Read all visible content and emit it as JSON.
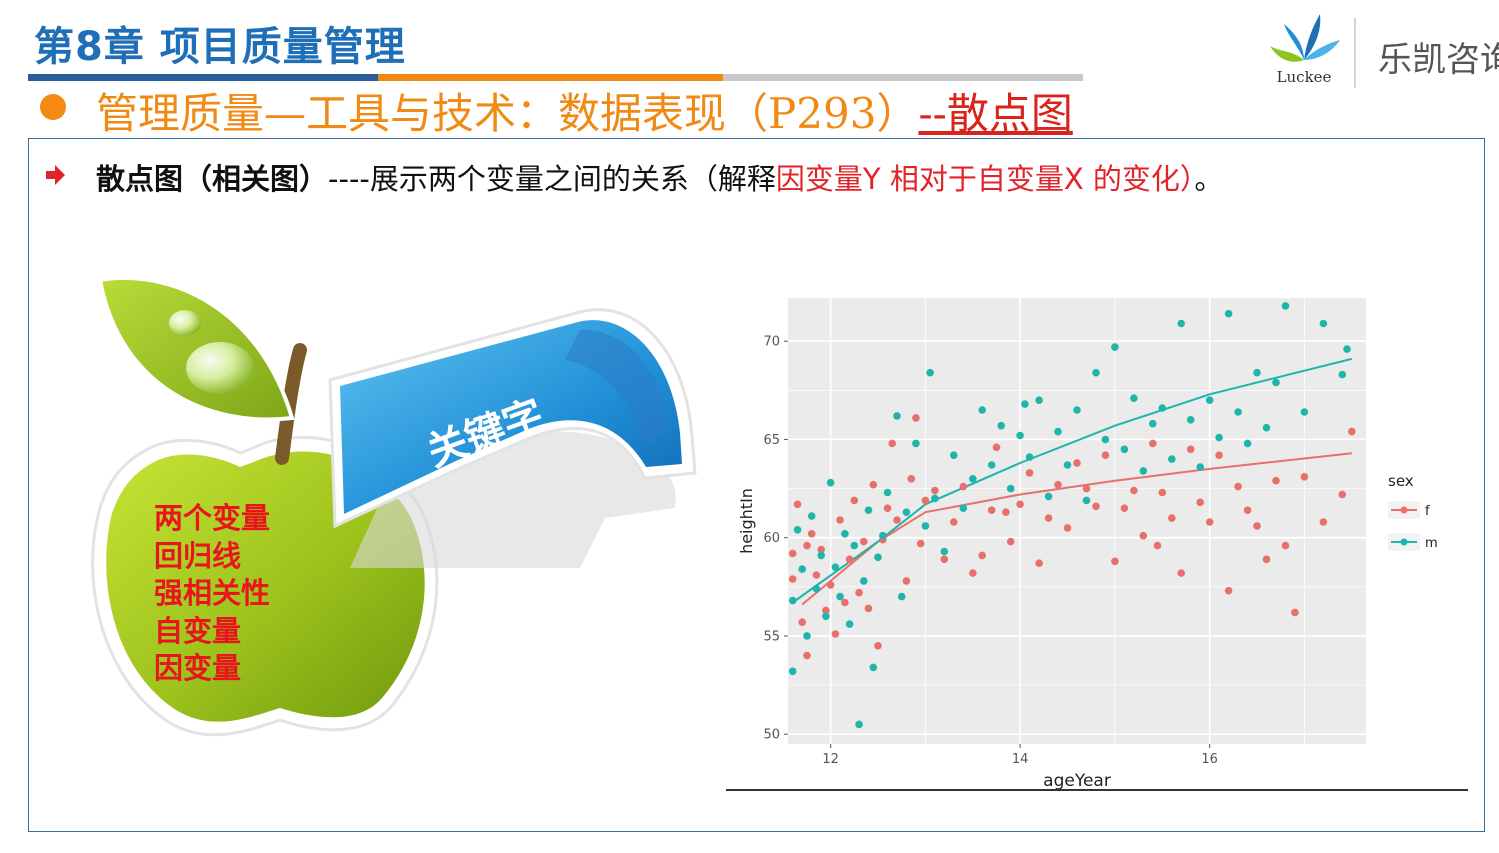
{
  "header": {
    "chapter_title": "第8章 项目质量管理",
    "subtitle_main": "管理质量—工具与技术：数据表现（P293）",
    "subtitle_tail": "--散点图",
    "brand": {
      "logo_text": "Luckee",
      "name": "乐凯咨询"
    }
  },
  "description": {
    "term": "散点图（相关图）",
    "dashes": "----",
    "text": "展示两个变量之间的关系（解释",
    "red_text": "因变量Y 相对于自变量X 的变化）",
    "end": "。"
  },
  "graphic": {
    "arrow_label": "关键字",
    "keywords": [
      "两个变量",
      "回归线",
      "强相关性",
      "自变量",
      "因变量"
    ]
  },
  "colors": {
    "chapter": "#1f6fb8",
    "subtitle": "#f08a14",
    "accent_red": "#e3232a",
    "female": "#e8706a",
    "male": "#1fb5ad",
    "panel": "#ebebeb"
  },
  "chart_data": {
    "type": "scatter",
    "xlabel": "ageYear",
    "ylabel": "heightIn",
    "xlim": [
      11.55,
      17.65
    ],
    "ylim": [
      49.5,
      72.2
    ],
    "xticks": [
      12,
      14,
      16
    ],
    "yticks": [
      50,
      55,
      60,
      65,
      70
    ],
    "grid": true,
    "legend": {
      "title": "sex",
      "position": "right"
    },
    "series": [
      {
        "name": "f",
        "color": "#e8706a",
        "points": [
          [
            11.6,
            57.9
          ],
          [
            11.6,
            59.2
          ],
          [
            11.65,
            61.7
          ],
          [
            11.7,
            55.7
          ],
          [
            11.75,
            59.6
          ],
          [
            11.75,
            54.0
          ],
          [
            11.8,
            60.2
          ],
          [
            11.85,
            58.1
          ],
          [
            11.9,
            59.4
          ],
          [
            11.95,
            56.3
          ],
          [
            12.0,
            57.6
          ],
          [
            12.05,
            55.1
          ],
          [
            12.1,
            60.9
          ],
          [
            12.15,
            56.7
          ],
          [
            12.2,
            58.9
          ],
          [
            12.25,
            61.9
          ],
          [
            12.3,
            57.2
          ],
          [
            12.35,
            59.8
          ],
          [
            12.4,
            56.4
          ],
          [
            12.45,
            62.7
          ],
          [
            12.5,
            54.5
          ],
          [
            12.55,
            59.9
          ],
          [
            12.6,
            61.5
          ],
          [
            12.65,
            64.8
          ],
          [
            12.7,
            60.9
          ],
          [
            12.8,
            57.8
          ],
          [
            12.85,
            63.0
          ],
          [
            12.9,
            66.1
          ],
          [
            12.95,
            59.7
          ],
          [
            13.0,
            61.9
          ],
          [
            13.1,
            62.4
          ],
          [
            13.2,
            58.9
          ],
          [
            13.3,
            60.8
          ],
          [
            13.4,
            62.6
          ],
          [
            13.5,
            58.2
          ],
          [
            13.6,
            59.1
          ],
          [
            13.7,
            61.4
          ],
          [
            13.75,
            64.6
          ],
          [
            13.85,
            61.3
          ],
          [
            13.9,
            59.8
          ],
          [
            14.0,
            61.7
          ],
          [
            14.1,
            63.3
          ],
          [
            14.2,
            58.7
          ],
          [
            14.3,
            61.0
          ],
          [
            14.4,
            62.7
          ],
          [
            14.5,
            60.5
          ],
          [
            14.6,
            63.8
          ],
          [
            14.7,
            62.5
          ],
          [
            14.8,
            61.6
          ],
          [
            14.9,
            64.2
          ],
          [
            15.0,
            58.8
          ],
          [
            15.1,
            61.5
          ],
          [
            15.2,
            62.4
          ],
          [
            15.3,
            60.1
          ],
          [
            15.4,
            64.8
          ],
          [
            15.45,
            59.6
          ],
          [
            15.5,
            62.3
          ],
          [
            15.6,
            61.0
          ],
          [
            15.7,
            58.2
          ],
          [
            15.8,
            64.5
          ],
          [
            15.9,
            61.8
          ],
          [
            16.0,
            60.8
          ],
          [
            16.1,
            64.2
          ],
          [
            16.2,
            57.3
          ],
          [
            16.3,
            62.6
          ],
          [
            16.4,
            61.4
          ],
          [
            16.5,
            60.6
          ],
          [
            16.6,
            58.9
          ],
          [
            16.7,
            62.9
          ],
          [
            16.8,
            59.6
          ],
          [
            16.9,
            56.2
          ],
          [
            17.0,
            63.1
          ],
          [
            17.2,
            60.8
          ],
          [
            17.4,
            62.2
          ],
          [
            17.5,
            65.4
          ]
        ]
      },
      {
        "name": "m",
        "color": "#1fb5ad",
        "points": [
          [
            11.6,
            53.2
          ],
          [
            11.6,
            56.8
          ],
          [
            11.65,
            60.4
          ],
          [
            11.7,
            58.4
          ],
          [
            11.75,
            55.0
          ],
          [
            11.8,
            61.1
          ],
          [
            11.85,
            57.4
          ],
          [
            11.9,
            59.1
          ],
          [
            11.95,
            56.0
          ],
          [
            12.0,
            62.8
          ],
          [
            12.05,
            58.5
          ],
          [
            12.1,
            57.0
          ],
          [
            12.15,
            60.2
          ],
          [
            12.2,
            55.6
          ],
          [
            12.25,
            59.6
          ],
          [
            12.3,
            50.5
          ],
          [
            12.35,
            57.8
          ],
          [
            12.4,
            61.4
          ],
          [
            12.45,
            53.4
          ],
          [
            12.5,
            59.0
          ],
          [
            12.55,
            60.1
          ],
          [
            12.6,
            62.3
          ],
          [
            12.7,
            66.2
          ],
          [
            12.75,
            57.0
          ],
          [
            12.8,
            61.3
          ],
          [
            12.9,
            64.8
          ],
          [
            13.0,
            60.6
          ],
          [
            13.05,
            68.4
          ],
          [
            13.1,
            62.0
          ],
          [
            13.2,
            59.3
          ],
          [
            13.3,
            64.2
          ],
          [
            13.4,
            61.5
          ],
          [
            13.5,
            63.0
          ],
          [
            13.6,
            66.5
          ],
          [
            13.7,
            63.7
          ],
          [
            13.8,
            65.7
          ],
          [
            13.9,
            62.5
          ],
          [
            14.0,
            65.2
          ],
          [
            14.05,
            66.8
          ],
          [
            14.1,
            64.1
          ],
          [
            14.2,
            67.0
          ],
          [
            14.3,
            62.1
          ],
          [
            14.4,
            65.4
          ],
          [
            14.5,
            63.7
          ],
          [
            14.6,
            66.5
          ],
          [
            14.7,
            61.9
          ],
          [
            14.8,
            68.4
          ],
          [
            14.9,
            65.0
          ],
          [
            15.0,
            69.7
          ],
          [
            15.1,
            64.5
          ],
          [
            15.2,
            67.1
          ],
          [
            15.3,
            63.4
          ],
          [
            15.4,
            65.8
          ],
          [
            15.5,
            66.6
          ],
          [
            15.6,
            64.0
          ],
          [
            15.7,
            70.9
          ],
          [
            15.8,
            66.0
          ],
          [
            15.9,
            63.6
          ],
          [
            16.0,
            67.0
          ],
          [
            16.1,
            65.1
          ],
          [
            16.2,
            71.4
          ],
          [
            16.3,
            66.4
          ],
          [
            16.4,
            64.8
          ],
          [
            16.5,
            68.4
          ],
          [
            16.6,
            65.6
          ],
          [
            16.7,
            67.9
          ],
          [
            16.8,
            71.8
          ],
          [
            17.0,
            66.4
          ],
          [
            17.2,
            70.9
          ],
          [
            17.4,
            68.3
          ],
          [
            17.45,
            69.6
          ]
        ]
      }
    ],
    "trend_lines": [
      {
        "name": "f",
        "points": [
          [
            11.7,
            56.6
          ],
          [
            12.5,
            59.8
          ],
          [
            13.0,
            61.3
          ],
          [
            14.0,
            62.2
          ],
          [
            15.0,
            62.9
          ],
          [
            16.0,
            63.5
          ],
          [
            17.5,
            64.3
          ]
        ]
      },
      {
        "name": "m",
        "points": [
          [
            11.6,
            56.7
          ],
          [
            12.5,
            59.8
          ],
          [
            13.0,
            61.7
          ],
          [
            14.0,
            63.8
          ],
          [
            15.0,
            65.7
          ],
          [
            16.0,
            67.3
          ],
          [
            17.5,
            69.1
          ]
        ]
      }
    ]
  }
}
